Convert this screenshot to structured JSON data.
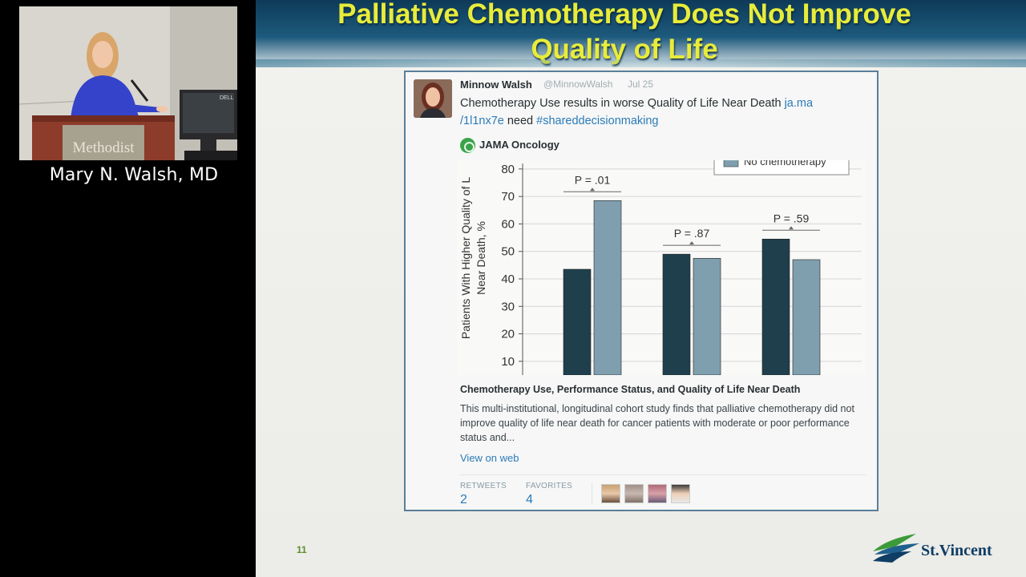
{
  "speaker": {
    "name": "Mary N. Walsh, MD",
    "podium_text": "Methodist",
    "monitor_brand": "DELL"
  },
  "slide": {
    "title": "Palliative Chemotherapy Does Not Improve\nQuality of Life",
    "number": "11",
    "logo_text": "St.Vincent"
  },
  "tweet": {
    "author": "Minnow Walsh",
    "handle": "@MinnowWalsh",
    "date": "Jul 25",
    "text_main": "Chemotherapy Use results in worse Quality of Life Near Death ",
    "link_1": "ja.ma",
    "link_2": "/1l1nx7e",
    "text_mid": " need ",
    "hashtag": "#shareddecisionmaking",
    "source_name": "JAMA Oncology",
    "article_title": "Chemotherapy Use, Performance Status, and Quality of Life Near Death",
    "article_description": "This multi-institutional, longitudinal cohort study finds that palliative chemotherapy did not improve quality of life near death for cancer patients with moderate or poor performance status and...",
    "view_on_web": "View on web",
    "retweets_label": "RETWEETS",
    "retweets_count": "2",
    "favorites_label": "FAVORITES",
    "favorites_count": "4",
    "colors": {
      "link": "#2b7bb9",
      "title": "#e8ec3a"
    }
  },
  "chart_data": {
    "type": "bar",
    "ylabel": "Patients With Higher Quality of L\nNear Death, %",
    "y_ticks": [
      10,
      20,
      30,
      40,
      50,
      60,
      70,
      80
    ],
    "ylim": [
      5,
      82
    ],
    "legend": [
      {
        "name": "No chemotherapy",
        "color": "#7f9fae"
      }
    ],
    "legend_position": "top-right",
    "grid": true,
    "series_colors": [
      "#1f3f4c",
      "#7f9fae"
    ],
    "groups": [
      {
        "values": [
          43.5,
          68.5
        ],
        "p_label": "P = .01"
      },
      {
        "values": [
          49,
          47.5
        ],
        "p_label": "P = .87"
      },
      {
        "values": [
          54.5,
          47
        ],
        "p_label": "P = .59"
      }
    ]
  }
}
